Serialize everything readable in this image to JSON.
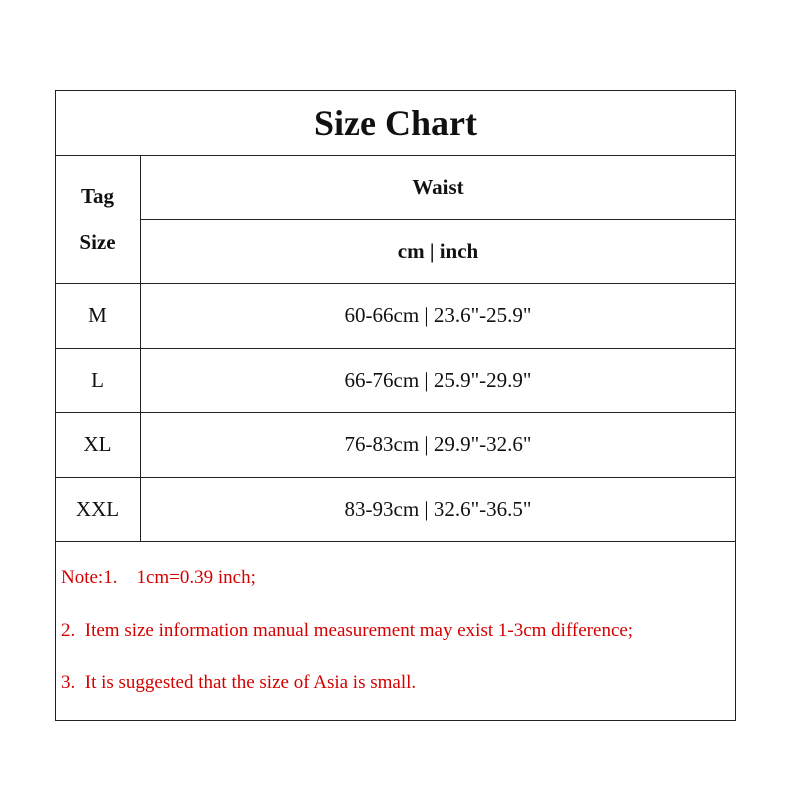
{
  "title": "Size Chart",
  "header": {
    "tag_size": [
      "Tag",
      "Size"
    ],
    "measure": "Waist",
    "units": "cm | inch"
  },
  "rows": [
    {
      "size": "M",
      "waist": "60-66cm | 23.6\"-25.9\""
    },
    {
      "size": "L",
      "waist": "66-76cm | 25.9\"-29.9\""
    },
    {
      "size": "XL",
      "waist": "76-83cm | 29.9\"-32.6\""
    },
    {
      "size": "XXL",
      "waist": "83-93cm | 32.6\"-36.5\""
    }
  ],
  "notes": [
    "Note:1.    1cm=0.39 inch;",
    "2.  Item size information manual measurement may exist 1-3cm difference;",
    "3.  It is suggested that the size of Asia is small."
  ],
  "colors": {
    "note": "#d40000",
    "border": "#222222"
  }
}
